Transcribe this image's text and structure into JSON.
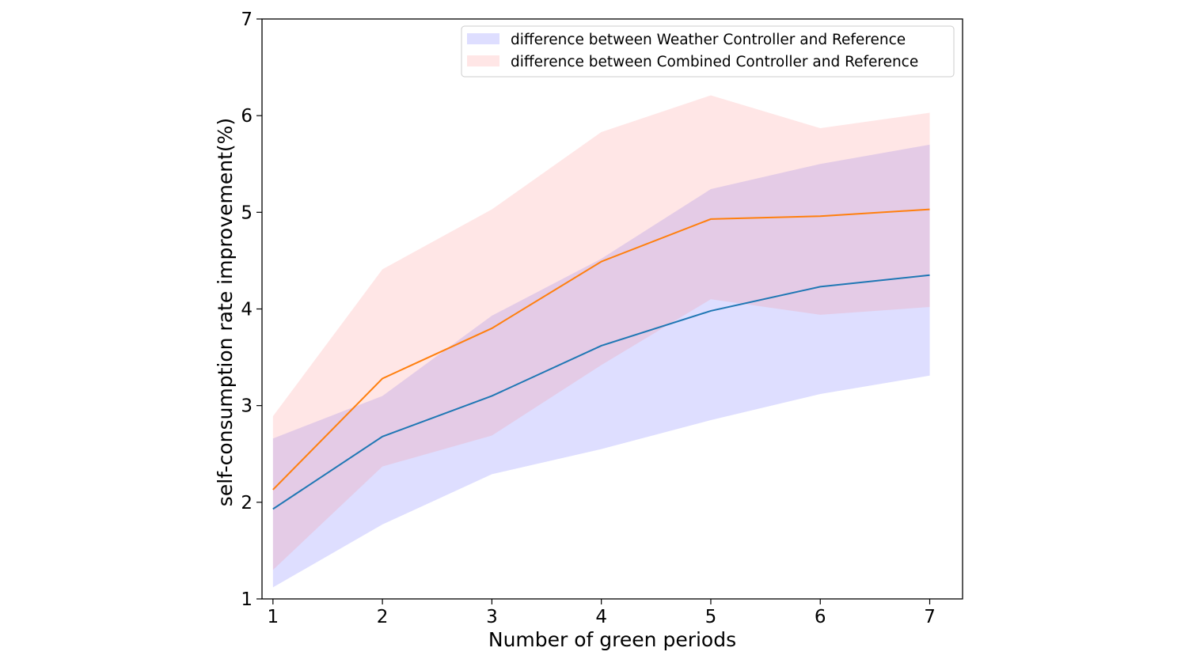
{
  "chart_data": {
    "type": "line",
    "title": "",
    "xlabel": "Number of green periods",
    "ylabel": "self-consumption rate improvement(%)",
    "x": [
      1,
      2,
      3,
      4,
      5,
      6,
      7
    ],
    "xlim": [
      0.9,
      7.3
    ],
    "ylim": [
      1,
      7
    ],
    "xticks": [
      "1",
      "2",
      "3",
      "4",
      "5",
      "6",
      "7"
    ],
    "yticks": [
      "1",
      "2",
      "3",
      "4",
      "5",
      "6",
      "7"
    ],
    "grid": false,
    "legend_position": "upper right",
    "series": [
      {
        "name": "difference between Weather Controller and Reference",
        "mean": [
          1.93,
          2.68,
          3.1,
          3.62,
          3.98,
          4.23,
          4.35
        ],
        "lower": [
          1.12,
          1.77,
          2.29,
          2.55,
          2.85,
          3.12,
          3.31
        ],
        "upper": [
          2.66,
          3.1,
          3.93,
          4.52,
          5.24,
          5.5,
          5.7
        ],
        "line_color": "#1f77b4",
        "fill_color": "#5a5aff"
      },
      {
        "name": "difference between Combined Controller and Reference",
        "mean": [
          2.13,
          3.28,
          3.8,
          4.49,
          4.93,
          4.96,
          5.03
        ],
        "lower": [
          1.3,
          2.37,
          2.69,
          3.42,
          4.1,
          3.94,
          4.02
        ],
        "upper": [
          2.89,
          4.41,
          5.03,
          5.83,
          6.21,
          5.87,
          6.03
        ],
        "line_color": "#ff7f0e",
        "fill_color": "#ff8080"
      }
    ]
  }
}
